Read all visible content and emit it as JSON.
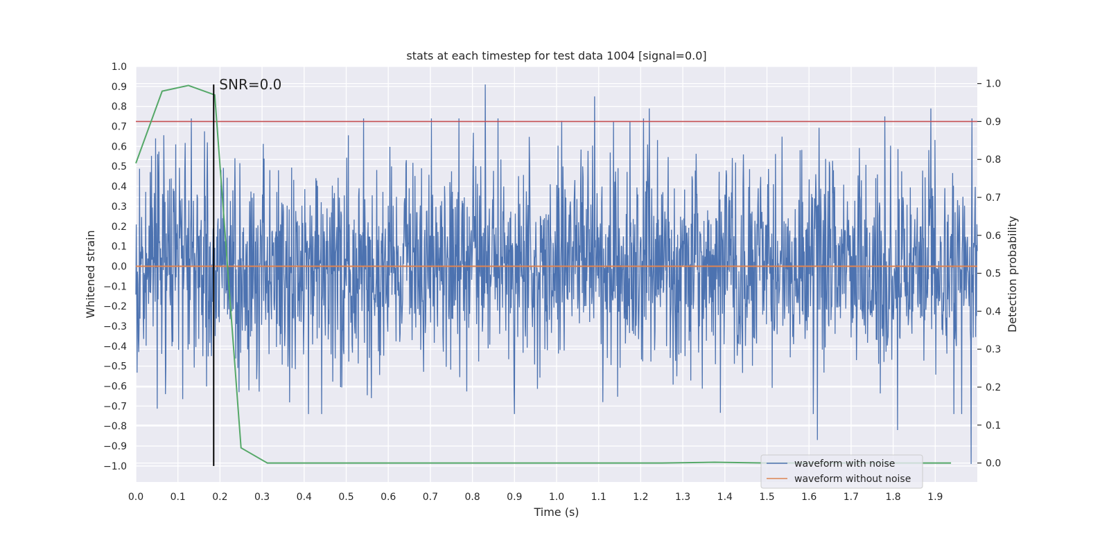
{
  "chart_data": {
    "type": "line",
    "title": "stats at each timestep for test data 1004 [signal=0.0]",
    "xlabel": "Time (s)",
    "ylabel": "Whitened strain",
    "ylabel_right": "Detection probability",
    "xlim": [
      0.0,
      2.0
    ],
    "ylim": [
      -1.08,
      1.0
    ],
    "ylim_right": [
      -0.05,
      1.045
    ],
    "grid": true,
    "legend_placement": "lower-right",
    "x_ticks": [
      "0.0",
      "0.1",
      "0.2",
      "0.3",
      "0.4",
      "0.5",
      "0.6",
      "0.7",
      "0.8",
      "0.9",
      "1.0",
      "1.1",
      "1.2",
      "1.3",
      "1.4",
      "1.5",
      "1.6",
      "1.7",
      "1.8",
      "1.9"
    ],
    "y_ticks": [
      "1.0",
      "0.9",
      "0.8",
      "0.7",
      "0.6",
      "0.5",
      "0.4",
      "0.3",
      "0.2",
      "0.1",
      "0.0",
      "−0.1",
      "−0.2",
      "−0.3",
      "−0.4",
      "−0.5",
      "−0.6",
      "−0.7",
      "−0.8",
      "−0.9",
      "−1.0"
    ],
    "y_ticks_right": [
      "1.0",
      "0.9",
      "0.8",
      "0.7",
      "0.6",
      "0.5",
      "0.4",
      "0.3",
      "0.2",
      "0.1",
      "0.0"
    ],
    "annotation": {
      "text": "SNR=0.0",
      "x": 0.185,
      "y_top": 0.91,
      "y_bottom": -1.0
    },
    "threshold": {
      "axis": "right",
      "value": 0.9,
      "color": "#c44e52"
    },
    "series": [
      {
        "name": "waveform with noise",
        "axis": "left",
        "color": "#4c72b0",
        "kind": "noise",
        "samples": 2048,
        "std": 0.26,
        "peaks": [
          [
            0.83,
            0.91
          ],
          [
            1.09,
            0.85
          ],
          [
            1.22,
            0.79
          ],
          [
            1.78,
            0.75
          ],
          [
            1.89,
            0.79
          ],
          [
            1.62,
            -0.87
          ],
          [
            1.81,
            -0.82
          ],
          [
            1.985,
            -0.99
          ],
          [
            1.11,
            -0.68
          ],
          [
            0.56,
            -0.66
          ],
          [
            0.07,
            -0.64
          ],
          [
            0.245,
            -0.63
          ],
          [
            0.095,
            0.61
          ],
          [
            0.17,
            0.62
          ],
          [
            0.047,
            0.64
          ]
        ]
      },
      {
        "name": "waveform without noise",
        "axis": "left",
        "color": "#dd8452",
        "x": [
          0.0,
          2.0
        ],
        "y": [
          0.0,
          0.0
        ]
      },
      {
        "name": "",
        "axis": "right",
        "color": "#55a868",
        "x": [
          0.0,
          0.0625,
          0.125,
          0.1875,
          0.25,
          0.3125,
          0.5,
          1.0,
          1.25,
          1.375,
          1.5,
          1.75,
          1.9375
        ],
        "y": [
          0.79,
          0.98,
          0.995,
          0.97,
          0.04,
          0.0,
          0.0,
          0.0,
          0.0,
          0.002,
          0.0,
          0.0,
          0.0
        ]
      }
    ]
  },
  "legend": [
    {
      "label": "waveform with noise",
      "color": "#4c72b0"
    },
    {
      "label": "waveform without noise",
      "color": "#dd8452"
    }
  ]
}
